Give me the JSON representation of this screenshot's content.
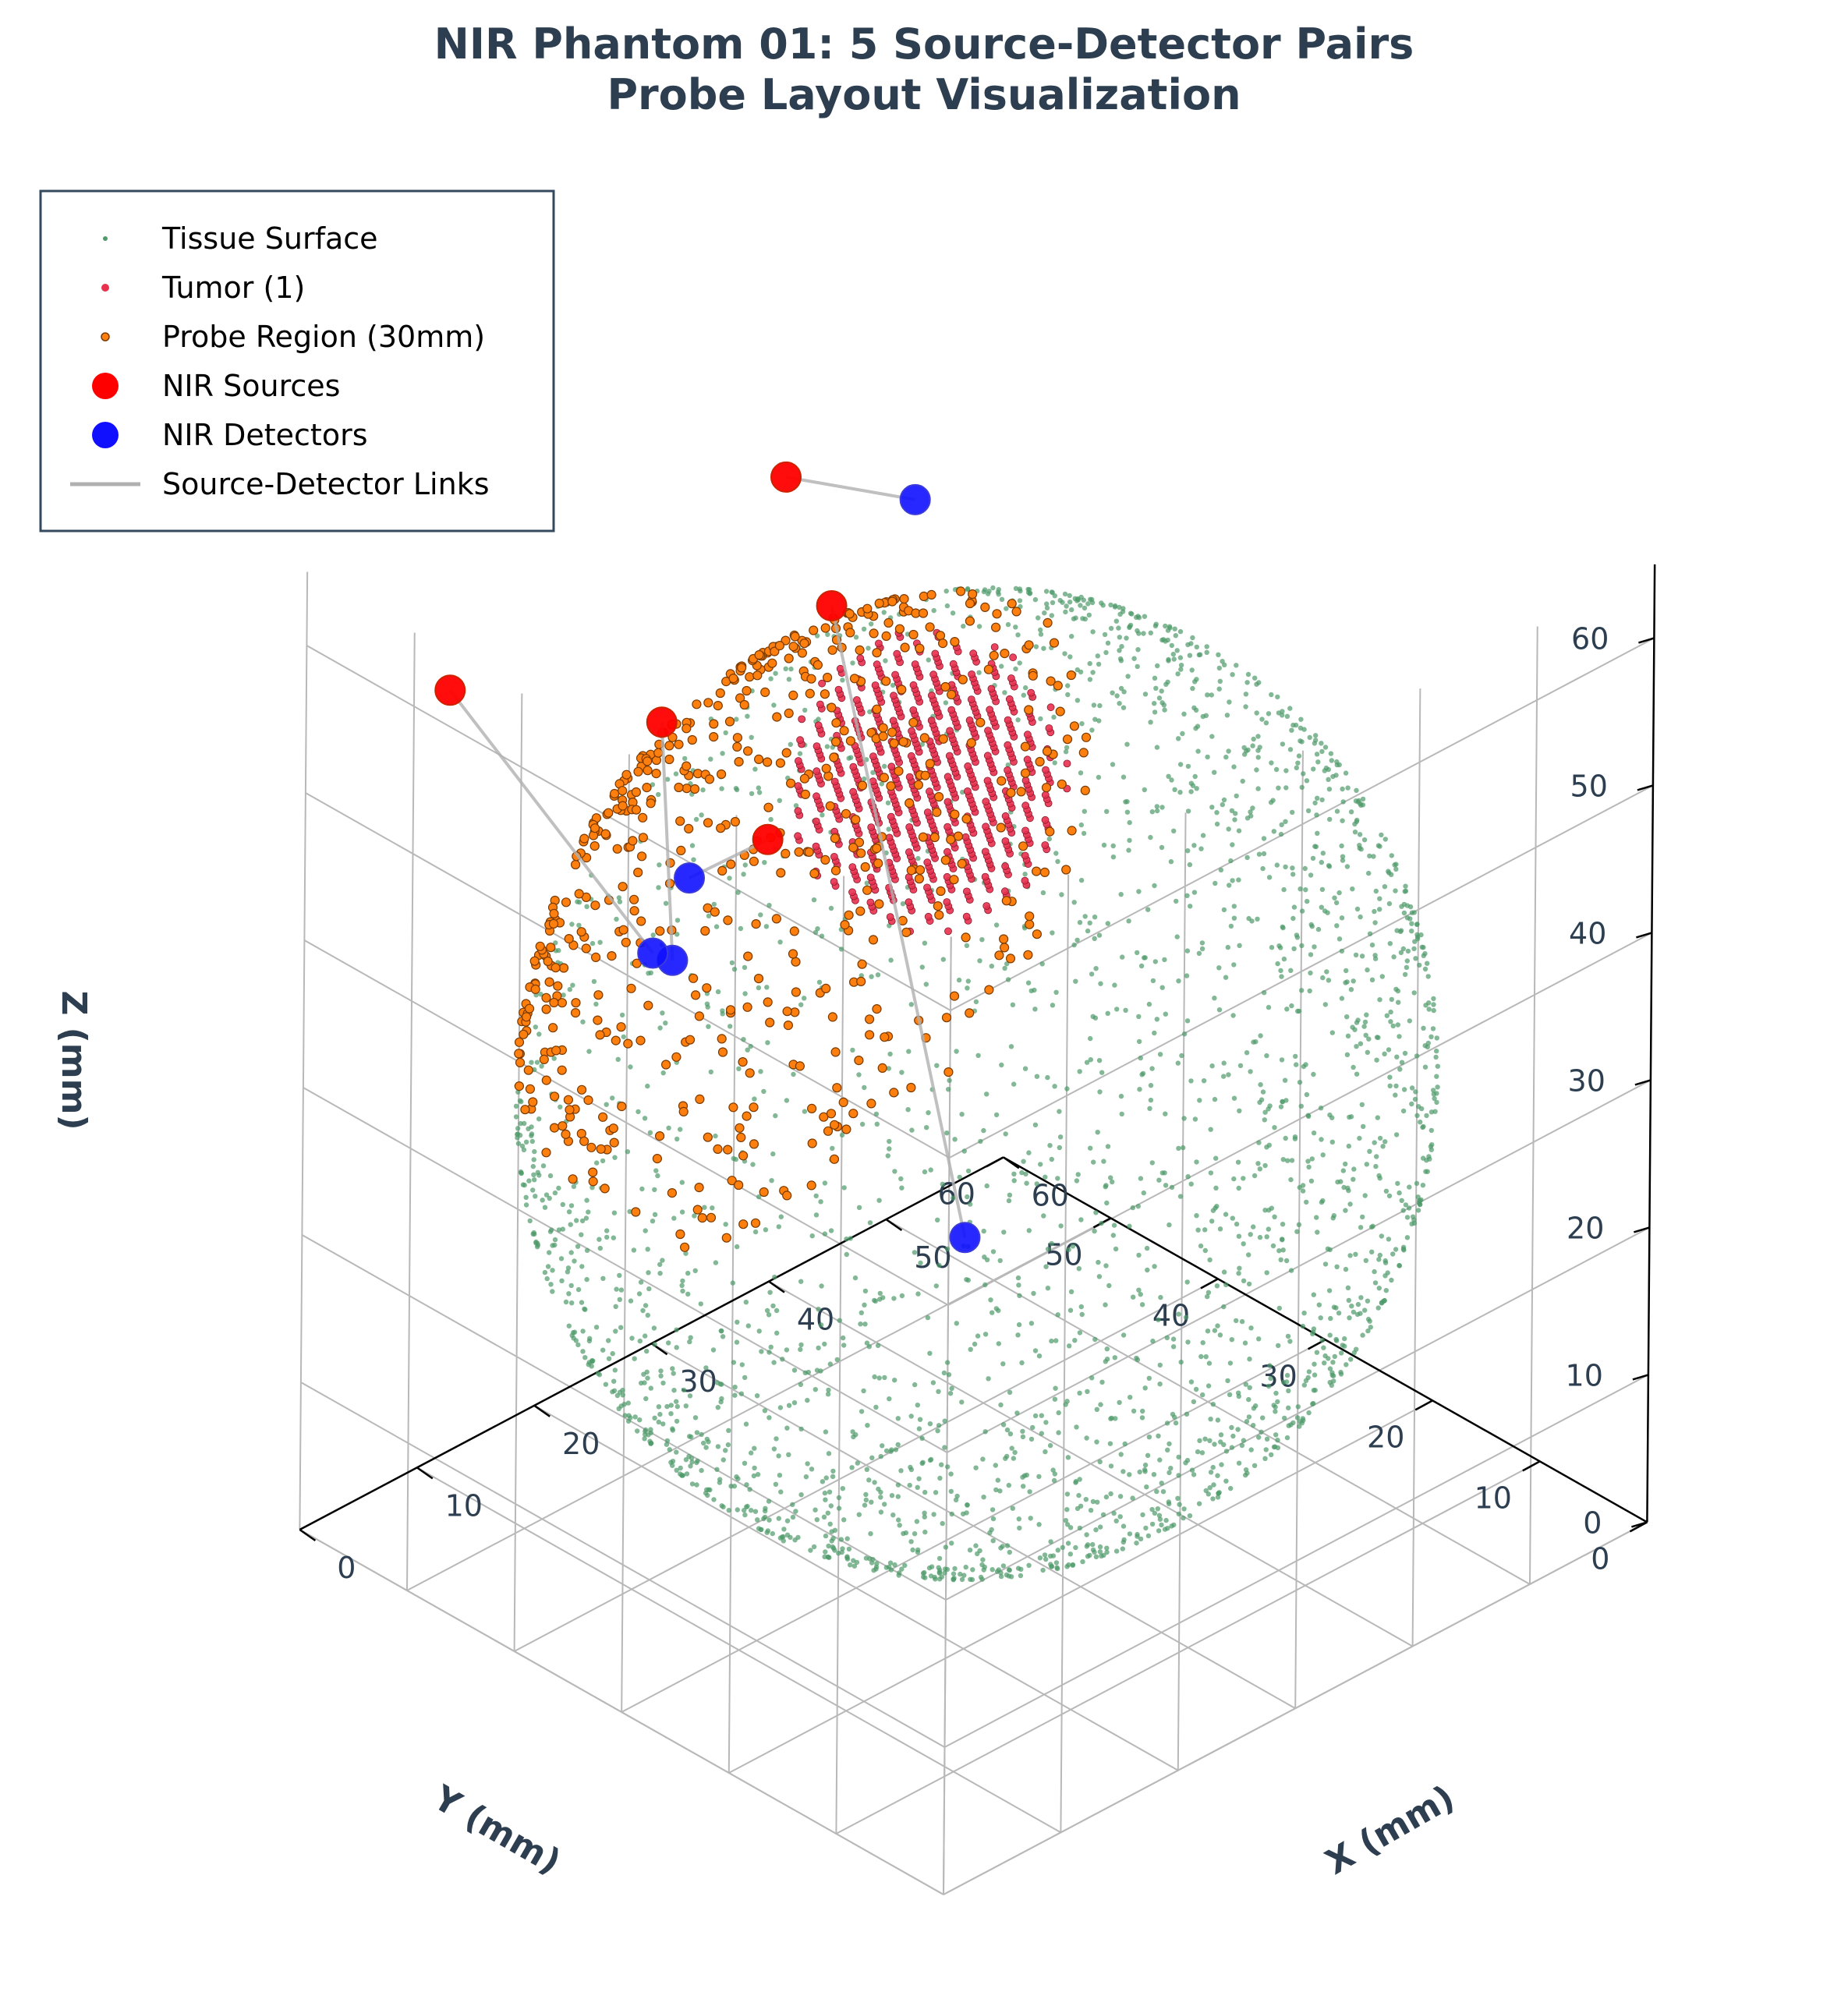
{
  "colors": {
    "tissue": "#4f9a6a",
    "tumor": "#e8304f",
    "probe": "#ff7f0e",
    "source": "#ff0000",
    "detector": "#1010ff",
    "link": "#b0b0b0",
    "grid": "#b8b8b8",
    "text": "#2c3e50"
  },
  "chart_data": {
    "type": "scatter",
    "projection": "3d",
    "title_line1": "NIR Phantom 01: 5 Source-Detector Pairs",
    "title_line2": "Probe Layout Visualization",
    "xlabel": "X (mm)",
    "ylabel": "Y (mm)",
    "zlabel": "Z (mm)",
    "xlim": [
      0,
      60
    ],
    "ylim": [
      0,
      60
    ],
    "zlim": [
      0,
      60
    ],
    "x_ticks": [
      "0",
      "10",
      "20",
      "30",
      "40",
      "50",
      "60"
    ],
    "y_ticks": [
      "0",
      "10",
      "20",
      "30",
      "40",
      "50",
      "60"
    ],
    "z_ticks": [
      "0",
      "10",
      "20",
      "30",
      "40",
      "50",
      "60"
    ],
    "grid": true,
    "legend_position": "top-left",
    "legend": [
      {
        "key": "tissue",
        "label": "Tissue Surface",
        "marker": "dot-small"
      },
      {
        "key": "tumor",
        "label": "Tumor (1)",
        "marker": "dot"
      },
      {
        "key": "probe",
        "label": "Probe Region (30mm)",
        "marker": "dot-edged"
      },
      {
        "key": "source",
        "label": "NIR Sources",
        "marker": "dot-large"
      },
      {
        "key": "detector",
        "label": "NIR Detectors",
        "marker": "dot-large"
      },
      {
        "key": "link",
        "label": "Source-Detector Links",
        "marker": "line"
      }
    ],
    "tissue_sphere": {
      "center": [
        30,
        30,
        30
      ],
      "radius": 29
    },
    "tumor_sphere": {
      "center": [
        12,
        42,
        38
      ],
      "radius": 9
    },
    "probe_region": {
      "center": [
        20,
        8,
        58
      ],
      "radius": 30
    },
    "series": [
      {
        "name": "NIR Sources",
        "points": [
          [
            1,
            40,
            55
          ],
          [
            20,
            12,
            58
          ],
          [
            9,
            4,
            59
          ],
          [
            31,
            11,
            55
          ],
          [
            14,
            32,
            55
          ]
        ]
      },
      {
        "name": "NIR Detectors",
        "points": [
          [
            0,
            52,
            48
          ],
          [
            32,
            2,
            51
          ],
          [
            28,
            4,
            49
          ],
          [
            27,
            8,
            52
          ],
          [
            55,
            6,
            40
          ]
        ]
      }
    ],
    "links": [
      [
        0,
        0
      ],
      [
        1,
        1
      ],
      [
        2,
        2
      ],
      [
        3,
        3
      ],
      [
        4,
        4
      ]
    ]
  }
}
